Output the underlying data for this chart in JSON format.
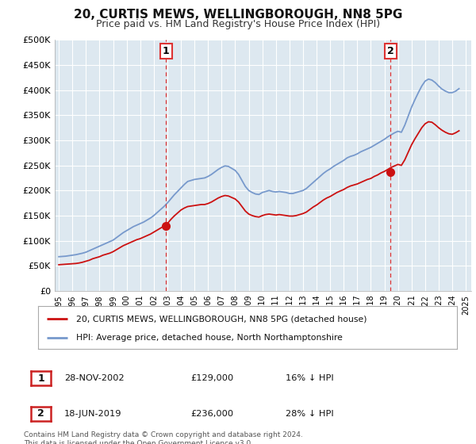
{
  "title": "20, CURTIS MEWS, WELLINGBOROUGH, NN8 5PG",
  "subtitle": "Price paid vs. HM Land Registry's House Price Index (HPI)",
  "title_fontsize": 11,
  "subtitle_fontsize": 9,
  "background_color": "#ffffff",
  "plot_bg_color": "#dde8f0",
  "grid_color": "#ffffff",
  "ylim": [
    0,
    500000
  ],
  "yticks": [
    0,
    50000,
    100000,
    150000,
    200000,
    250000,
    300000,
    350000,
    400000,
    450000,
    500000
  ],
  "ytick_labels": [
    "£0",
    "£50K",
    "£100K",
    "£150K",
    "£200K",
    "£250K",
    "£300K",
    "£350K",
    "£400K",
    "£450K",
    "£500K"
  ],
  "xlim_start": 1994.7,
  "xlim_end": 2025.4,
  "xticks": [
    1995,
    1996,
    1997,
    1998,
    1999,
    2000,
    2001,
    2002,
    2003,
    2004,
    2005,
    2006,
    2007,
    2008,
    2009,
    2010,
    2011,
    2012,
    2013,
    2014,
    2015,
    2016,
    2017,
    2018,
    2019,
    2020,
    2021,
    2022,
    2023,
    2024,
    2025
  ],
  "hpi_color": "#7799cc",
  "price_color": "#cc1111",
  "marker1_date": 2002.91,
  "marker1_price": 129000,
  "marker2_date": 2019.46,
  "marker2_price": 236000,
  "vline_color": "#dd3333",
  "legend_label_price": "20, CURTIS MEWS, WELLINGBOROUGH, NN8 5PG (detached house)",
  "legend_label_hpi": "HPI: Average price, detached house, North Northamptonshire",
  "annotation1": "1",
  "annotation2": "2",
  "table_row1": [
    "1",
    "28-NOV-2002",
    "£129,000",
    "16% ↓ HPI"
  ],
  "table_row2": [
    "2",
    "18-JUN-2019",
    "£236,000",
    "28% ↓ HPI"
  ],
  "footer": "Contains HM Land Registry data © Crown copyright and database right 2024.\nThis data is licensed under the Open Government Licence v3.0.",
  "hpi_data_x": [
    1995.0,
    1995.25,
    1995.5,
    1995.75,
    1996.0,
    1996.25,
    1996.5,
    1996.75,
    1997.0,
    1997.25,
    1997.5,
    1997.75,
    1998.0,
    1998.25,
    1998.5,
    1998.75,
    1999.0,
    1999.25,
    1999.5,
    1999.75,
    2000.0,
    2000.25,
    2000.5,
    2000.75,
    2001.0,
    2001.25,
    2001.5,
    2001.75,
    2002.0,
    2002.25,
    2002.5,
    2002.75,
    2003.0,
    2003.25,
    2003.5,
    2003.75,
    2004.0,
    2004.25,
    2004.5,
    2004.75,
    2005.0,
    2005.25,
    2005.5,
    2005.75,
    2006.0,
    2006.25,
    2006.5,
    2006.75,
    2007.0,
    2007.25,
    2007.5,
    2007.75,
    2008.0,
    2008.25,
    2008.5,
    2008.75,
    2009.0,
    2009.25,
    2009.5,
    2009.75,
    2010.0,
    2010.25,
    2010.5,
    2010.75,
    2011.0,
    2011.25,
    2011.5,
    2011.75,
    2012.0,
    2012.25,
    2012.5,
    2012.75,
    2013.0,
    2013.25,
    2013.5,
    2013.75,
    2014.0,
    2014.25,
    2014.5,
    2014.75,
    2015.0,
    2015.25,
    2015.5,
    2015.75,
    2016.0,
    2016.25,
    2016.5,
    2016.75,
    2017.0,
    2017.25,
    2017.5,
    2017.75,
    2018.0,
    2018.25,
    2018.5,
    2018.75,
    2019.0,
    2019.25,
    2019.5,
    2019.75,
    2020.0,
    2020.25,
    2020.5,
    2020.75,
    2021.0,
    2021.25,
    2021.5,
    2021.75,
    2022.0,
    2022.25,
    2022.5,
    2022.75,
    2023.0,
    2023.25,
    2023.5,
    2023.75,
    2024.0,
    2024.25,
    2024.5
  ],
  "hpi_data_y": [
    68000,
    68500,
    69000,
    70000,
    71000,
    72000,
    73500,
    75000,
    77000,
    80000,
    83000,
    86000,
    89000,
    92000,
    95000,
    98000,
    101000,
    106000,
    111000,
    116000,
    120000,
    124000,
    128000,
    131000,
    134000,
    137000,
    141000,
    145000,
    150000,
    156000,
    162000,
    168000,
    175000,
    183000,
    191000,
    198000,
    205000,
    212000,
    218000,
    220000,
    222000,
    223000,
    224000,
    225000,
    228000,
    232000,
    237000,
    242000,
    246000,
    249000,
    248000,
    244000,
    240000,
    232000,
    220000,
    208000,
    200000,
    196000,
    193000,
    192000,
    196000,
    198000,
    200000,
    198000,
    197000,
    198000,
    197000,
    196000,
    194000,
    194000,
    196000,
    198000,
    200000,
    204000,
    210000,
    216000,
    222000,
    228000,
    234000,
    239000,
    243000,
    248000,
    252000,
    256000,
    260000,
    265000,
    268000,
    270000,
    273000,
    277000,
    280000,
    283000,
    286000,
    290000,
    294000,
    298000,
    302000,
    307000,
    311000,
    315000,
    318000,
    316000,
    330000,
    348000,
    366000,
    381000,
    395000,
    408000,
    418000,
    422000,
    420000,
    415000,
    408000,
    402000,
    398000,
    395000,
    395000,
    398000,
    403000
  ],
  "price_data_x": [
    1995.0,
    1995.25,
    1995.5,
    1995.75,
    1996.0,
    1996.25,
    1996.5,
    1996.75,
    1997.0,
    1997.25,
    1997.5,
    1997.75,
    1998.0,
    1998.25,
    1998.5,
    1998.75,
    1999.0,
    1999.25,
    1999.5,
    1999.75,
    2000.0,
    2000.25,
    2000.5,
    2000.75,
    2001.0,
    2001.25,
    2001.5,
    2001.75,
    2002.0,
    2002.25,
    2002.5,
    2002.75,
    2003.0,
    2003.25,
    2003.5,
    2003.75,
    2004.0,
    2004.25,
    2004.5,
    2004.75,
    2005.0,
    2005.25,
    2005.5,
    2005.75,
    2006.0,
    2006.25,
    2006.5,
    2006.75,
    2007.0,
    2007.25,
    2007.5,
    2007.75,
    2008.0,
    2008.25,
    2008.5,
    2008.75,
    2009.0,
    2009.25,
    2009.5,
    2009.75,
    2010.0,
    2010.25,
    2010.5,
    2010.75,
    2011.0,
    2011.25,
    2011.5,
    2011.75,
    2012.0,
    2012.25,
    2012.5,
    2012.75,
    2013.0,
    2013.25,
    2013.5,
    2013.75,
    2014.0,
    2014.25,
    2014.5,
    2014.75,
    2015.0,
    2015.25,
    2015.5,
    2015.75,
    2016.0,
    2016.25,
    2016.5,
    2016.75,
    2017.0,
    2017.25,
    2017.5,
    2017.75,
    2018.0,
    2018.25,
    2018.5,
    2018.75,
    2019.0,
    2019.25,
    2019.5,
    2019.75,
    2020.0,
    2020.25,
    2020.5,
    2020.75,
    2021.0,
    2021.25,
    2021.5,
    2021.75,
    2022.0,
    2022.25,
    2022.5,
    2022.75,
    2023.0,
    2023.25,
    2023.5,
    2023.75,
    2024.0,
    2024.25,
    2024.5
  ],
  "price_data_y": [
    52000,
    52500,
    53000,
    53500,
    54000,
    54500,
    55500,
    57000,
    59000,
    61000,
    64000,
    66000,
    68000,
    71000,
    73000,
    75000,
    78000,
    82000,
    86000,
    90000,
    93000,
    96000,
    99000,
    102000,
    104000,
    107000,
    110000,
    113000,
    117000,
    121000,
    125000,
    129000,
    134000,
    142000,
    149000,
    155000,
    161000,
    165000,
    168000,
    169000,
    170000,
    171000,
    172000,
    172000,
    174000,
    177000,
    181000,
    185000,
    188000,
    190000,
    189000,
    186000,
    183000,
    177000,
    168000,
    159000,
    153000,
    150000,
    148000,
    147000,
    150000,
    152000,
    153000,
    152000,
    151000,
    152000,
    151000,
    150000,
    149000,
    149000,
    150000,
    152000,
    154000,
    157000,
    162000,
    167000,
    171000,
    176000,
    181000,
    185000,
    188000,
    192000,
    196000,
    199000,
    202000,
    206000,
    209000,
    211000,
    213000,
    216000,
    219000,
    222000,
    224000,
    228000,
    231000,
    235000,
    238000,
    242000,
    246000,
    249000,
    252000,
    250000,
    261000,
    276000,
    291000,
    303000,
    314000,
    325000,
    333000,
    337000,
    336000,
    331000,
    325000,
    320000,
    316000,
    313000,
    312000,
    315000,
    319000
  ]
}
